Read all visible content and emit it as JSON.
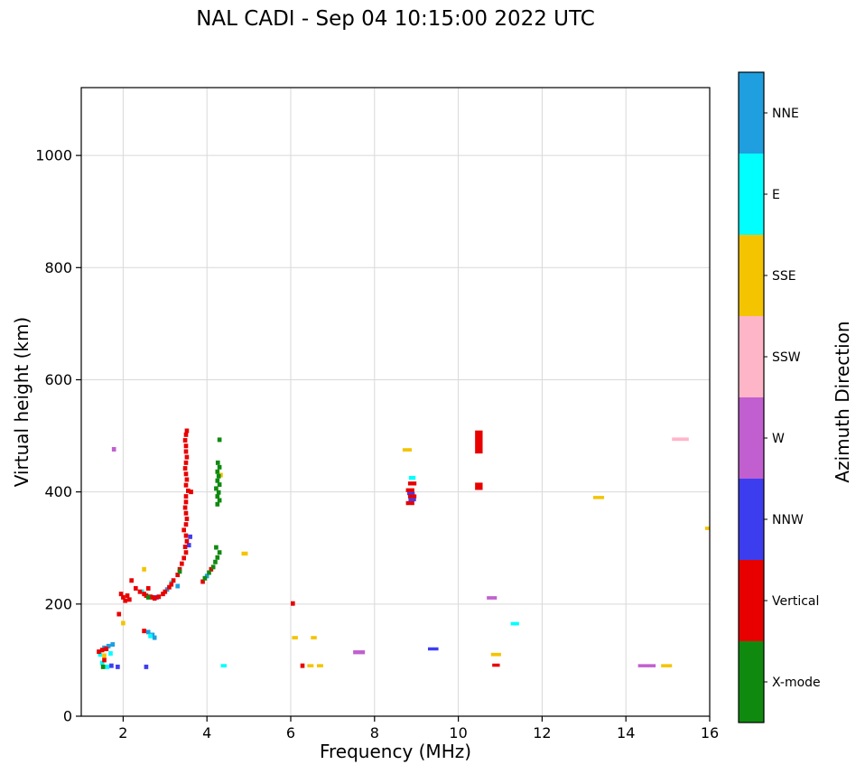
{
  "title": "NAL CADI - Sep 04 10:15:00 2022 UTC",
  "axes": {
    "xlabel": "Frequency (MHz)",
    "ylabel": "Virtual height (km)",
    "xticks": [
      2,
      4,
      6,
      8,
      10,
      12,
      14,
      16
    ],
    "yticks": [
      0,
      200,
      400,
      600,
      800,
      1000
    ],
    "xlim": [
      1,
      16
    ],
    "ylim": [
      0,
      1121
    ],
    "grid": true
  },
  "colorbar": {
    "title": "Azimuth Direction",
    "categories": [
      {
        "label": "NNE",
        "color": "#1f9fe0"
      },
      {
        "label": "E",
        "color": "#00ffff"
      },
      {
        "label": "SSE",
        "color": "#f4c400"
      },
      {
        "label": "SSW",
        "color": "#ffb5c8"
      },
      {
        "label": "W",
        "color": "#c15fd0"
      },
      {
        "label": "NNW",
        "color": "#3d3df0"
      },
      {
        "label": "Vertical",
        "color": "#e80000"
      },
      {
        "label": "X-mode",
        "color": "#0f8a0f"
      }
    ]
  },
  "chart_data": {
    "type": "scatter",
    "title": "NAL CADI - Sep 04 10:15:00 2022 UTC",
    "xlabel": "Frequency (MHz)",
    "ylabel": "Virtual height (km)",
    "xlim": [
      1,
      16
    ],
    "ylim": [
      0,
      1121
    ],
    "legend_position": "right-colorbar",
    "point_units": "[freq_MHz, height_km, optional_width_MHz, optional_height_km]",
    "series": [
      {
        "name": "NNE",
        "color": "#1f9fe0",
        "points": [
          [
            1.55,
            122
          ],
          [
            1.65,
            125
          ],
          [
            1.75,
            128
          ],
          [
            2.6,
            150
          ],
          [
            2.7,
            145
          ],
          [
            2.75,
            140
          ],
          [
            3.05,
            226
          ],
          [
            3.3,
            232
          ],
          [
            4.0,
            250
          ]
        ]
      },
      {
        "name": "E",
        "color": "#00ffff",
        "points": [
          [
            1.45,
            110
          ],
          [
            1.5,
            95
          ],
          [
            1.62,
            88
          ],
          [
            1.7,
            112
          ],
          [
            2.45,
            222
          ],
          [
            2.65,
            143
          ],
          [
            3.15,
            238
          ],
          [
            4.4,
            90,
            0.14,
            6
          ],
          [
            8.9,
            425,
            0.16,
            7
          ],
          [
            11.35,
            165,
            0.2,
            6
          ]
        ]
      },
      {
        "name": "SSE",
        "color": "#f4c400",
        "points": [
          [
            1.55,
            108
          ],
          [
            2.0,
            166
          ],
          [
            2.5,
            262
          ],
          [
            4.33,
            430
          ],
          [
            4.9,
            290,
            0.15,
            7
          ],
          [
            6.1,
            140,
            0.14,
            6
          ],
          [
            6.55,
            140,
            0.14,
            6
          ],
          [
            6.47,
            90,
            0.15,
            5
          ],
          [
            6.7,
            90,
            0.15,
            5
          ],
          [
            8.78,
            475,
            0.22,
            6
          ],
          [
            10.9,
            110,
            0.24,
            6
          ],
          [
            13.35,
            390,
            0.26,
            5
          ],
          [
            14.97,
            90,
            0.26,
            5
          ],
          [
            15.97,
            335,
            0.16,
            6
          ]
        ]
      },
      {
        "name": "SSW",
        "color": "#ffb5c8",
        "points": [
          [
            15.3,
            494,
            0.4,
            6
          ]
        ]
      },
      {
        "name": "W",
        "color": "#c15fd0",
        "points": [
          [
            1.78,
            476
          ],
          [
            7.63,
            114,
            0.28,
            7
          ],
          [
            10.8,
            211,
            0.24,
            6
          ],
          [
            14.5,
            90,
            0.42,
            5
          ]
        ]
      },
      {
        "name": "NNW",
        "color": "#3d3df0",
        "points": [
          [
            1.72,
            90
          ],
          [
            1.87,
            88
          ],
          [
            2.55,
            88
          ],
          [
            2.8,
            212
          ],
          [
            3.57,
            305
          ],
          [
            3.6,
            320
          ],
          [
            8.9,
            386,
            0.18,
            5
          ],
          [
            8.87,
            397,
            0.18,
            5
          ],
          [
            9.4,
            120,
            0.25,
            5
          ]
        ]
      },
      {
        "name": "Vertical",
        "color": "#e80000",
        "points": [
          [
            1.42,
            115
          ],
          [
            1.5,
            118
          ],
          [
            1.55,
            100
          ],
          [
            1.6,
            120
          ],
          [
            1.9,
            182
          ],
          [
            1.95,
            218
          ],
          [
            2.0,
            212
          ],
          [
            2.05,
            206
          ],
          [
            2.1,
            215
          ],
          [
            2.15,
            208
          ],
          [
            2.5,
            152
          ],
          [
            2.2,
            242
          ],
          [
            2.3,
            228
          ],
          [
            2.4,
            222
          ],
          [
            2.5,
            218
          ],
          [
            2.55,
            215
          ],
          [
            2.6,
            228
          ],
          [
            2.65,
            213
          ],
          [
            2.7,
            212
          ],
          [
            2.75,
            210
          ],
          [
            2.85,
            213
          ],
          [
            2.95,
            218
          ],
          [
            3.0,
            222
          ],
          [
            3.1,
            230
          ],
          [
            3.15,
            235
          ],
          [
            3.2,
            242
          ],
          [
            3.3,
            252
          ],
          [
            3.35,
            262
          ],
          [
            3.4,
            272
          ],
          [
            3.45,
            282
          ],
          [
            3.5,
            292
          ],
          [
            3.48,
            302
          ],
          [
            3.52,
            312
          ],
          [
            3.5,
            322
          ],
          [
            3.45,
            332
          ],
          [
            3.5,
            342
          ],
          [
            3.52,
            352
          ],
          [
            3.5,
            362
          ],
          [
            3.48,
            372
          ],
          [
            3.5,
            382
          ],
          [
            3.5,
            392
          ],
          [
            3.55,
            402
          ],
          [
            3.62,
            400
          ],
          [
            3.5,
            412
          ],
          [
            3.52,
            422
          ],
          [
            3.5,
            432
          ],
          [
            3.48,
            442
          ],
          [
            3.5,
            452
          ],
          [
            3.52,
            462
          ],
          [
            3.5,
            472
          ],
          [
            3.5,
            482
          ],
          [
            3.48,
            492
          ],
          [
            3.5,
            502
          ],
          [
            3.52,
            509
          ],
          [
            3.9,
            240
          ],
          [
            4.1,
            262
          ],
          [
            6.05,
            201
          ],
          [
            6.28,
            90
          ],
          [
            8.85,
            380,
            0.2,
            7
          ],
          [
            8.9,
            392,
            0.2,
            7
          ],
          [
            8.85,
            403,
            0.2,
            7
          ],
          [
            8.9,
            415,
            0.2,
            7
          ],
          [
            10.49,
            489,
            0.18,
            41
          ],
          [
            10.49,
            410,
            0.18,
            13
          ],
          [
            10.9,
            91,
            0.18,
            5
          ]
        ]
      },
      {
        "name": "X-mode",
        "color": "#0f8a0f",
        "points": [
          [
            1.52,
            88
          ],
          [
            2.6,
            212
          ],
          [
            3.35,
            258
          ],
          [
            3.95,
            246
          ],
          [
            4.05,
            256
          ],
          [
            4.15,
            266
          ],
          [
            4.2,
            275
          ],
          [
            4.25,
            283
          ],
          [
            4.3,
            292
          ],
          [
            4.22,
            301
          ],
          [
            4.25,
            378
          ],
          [
            4.3,
            385
          ],
          [
            4.25,
            392
          ],
          [
            4.28,
            399
          ],
          [
            4.22,
            406
          ],
          [
            4.3,
            413
          ],
          [
            4.25,
            420
          ],
          [
            4.28,
            428
          ],
          [
            4.25,
            436
          ],
          [
            4.3,
            444
          ],
          [
            4.26,
            452
          ],
          [
            4.3,
            493
          ]
        ]
      }
    ]
  }
}
